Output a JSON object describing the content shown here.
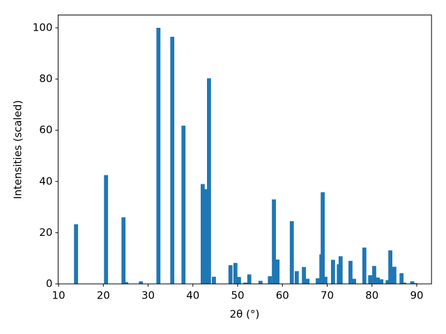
{
  "chart_data": {
    "type": "bar",
    "x_label": "2θ (°)",
    "y_label": "Intensities (scaled)",
    "color": "#1f77b4",
    "x": [
      13.9,
      20.6,
      24.5,
      25.1,
      28.4,
      32.3,
      35.4,
      37.9,
      42.2,
      43.0,
      43.6,
      44.7,
      48.4,
      49.5,
      50.3,
      51.7,
      52.6,
      55.1,
      57.2,
      58.1,
      58.9,
      62.1,
      63.2,
      64.8,
      65.6,
      67.9,
      68.7,
      69.0,
      69.6,
      71.3,
      72.6,
      73.0,
      75.2,
      76.0,
      78.3,
      79.6,
      80.5,
      81.3,
      82.1,
      83.5,
      84.1,
      85.0,
      86.6,
      87.2,
      89.0,
      89.7
    ],
    "values": [
      23.3,
      42.5,
      26,
      0.7,
      1,
      100,
      96.5,
      61.8,
      39,
      37,
      80.3,
      2.8,
      7.3,
      8.2,
      2.7,
      0.5,
      3.7,
      1.2,
      3,
      33,
      9.5,
      24.5,
      5,
      6.6,
      2,
      2.2,
      11.5,
      35.8,
      2.8,
      9.4,
      7.7,
      10.8,
      9,
      2,
      14.2,
      3.4,
      7,
      2.5,
      1.8,
      1.5,
      13.1,
      6.7,
      4.2,
      0.5,
      1,
      0.3
    ],
    "xlim": [
      9.9,
      93.3
    ],
    "ylim": [
      0,
      105
    ],
    "xticks": [
      10,
      20,
      30,
      40,
      50,
      60,
      70,
      80,
      90
    ],
    "yticks": [
      0,
      20,
      40,
      60,
      80,
      100
    ]
  }
}
